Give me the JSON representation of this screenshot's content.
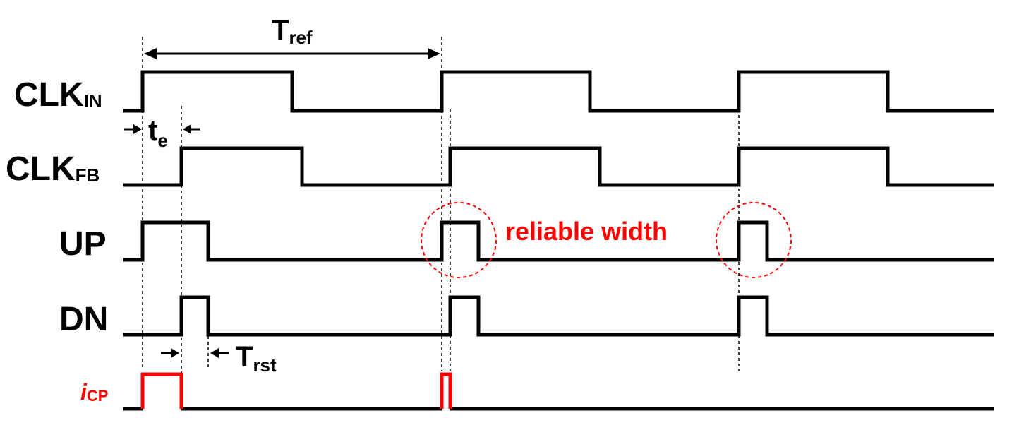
{
  "signals": {
    "clk_in": {
      "main": "CLK",
      "sub": "IN"
    },
    "clk_fb": {
      "main": "CLK",
      "sub": "FB"
    },
    "up": {
      "main": "UP"
    },
    "dn": {
      "main": "DN"
    },
    "icp": {
      "main": "i",
      "sub": "CP"
    }
  },
  "annotations": {
    "tref": {
      "main": "T",
      "sub": "ref"
    },
    "te": {
      "main": "t",
      "sub": "e"
    },
    "trst": {
      "main": "T",
      "sub": "rst"
    },
    "reliable_width": "reliable width"
  },
  "colors": {
    "signal": "#000000",
    "highlight": "#ff0000"
  }
}
